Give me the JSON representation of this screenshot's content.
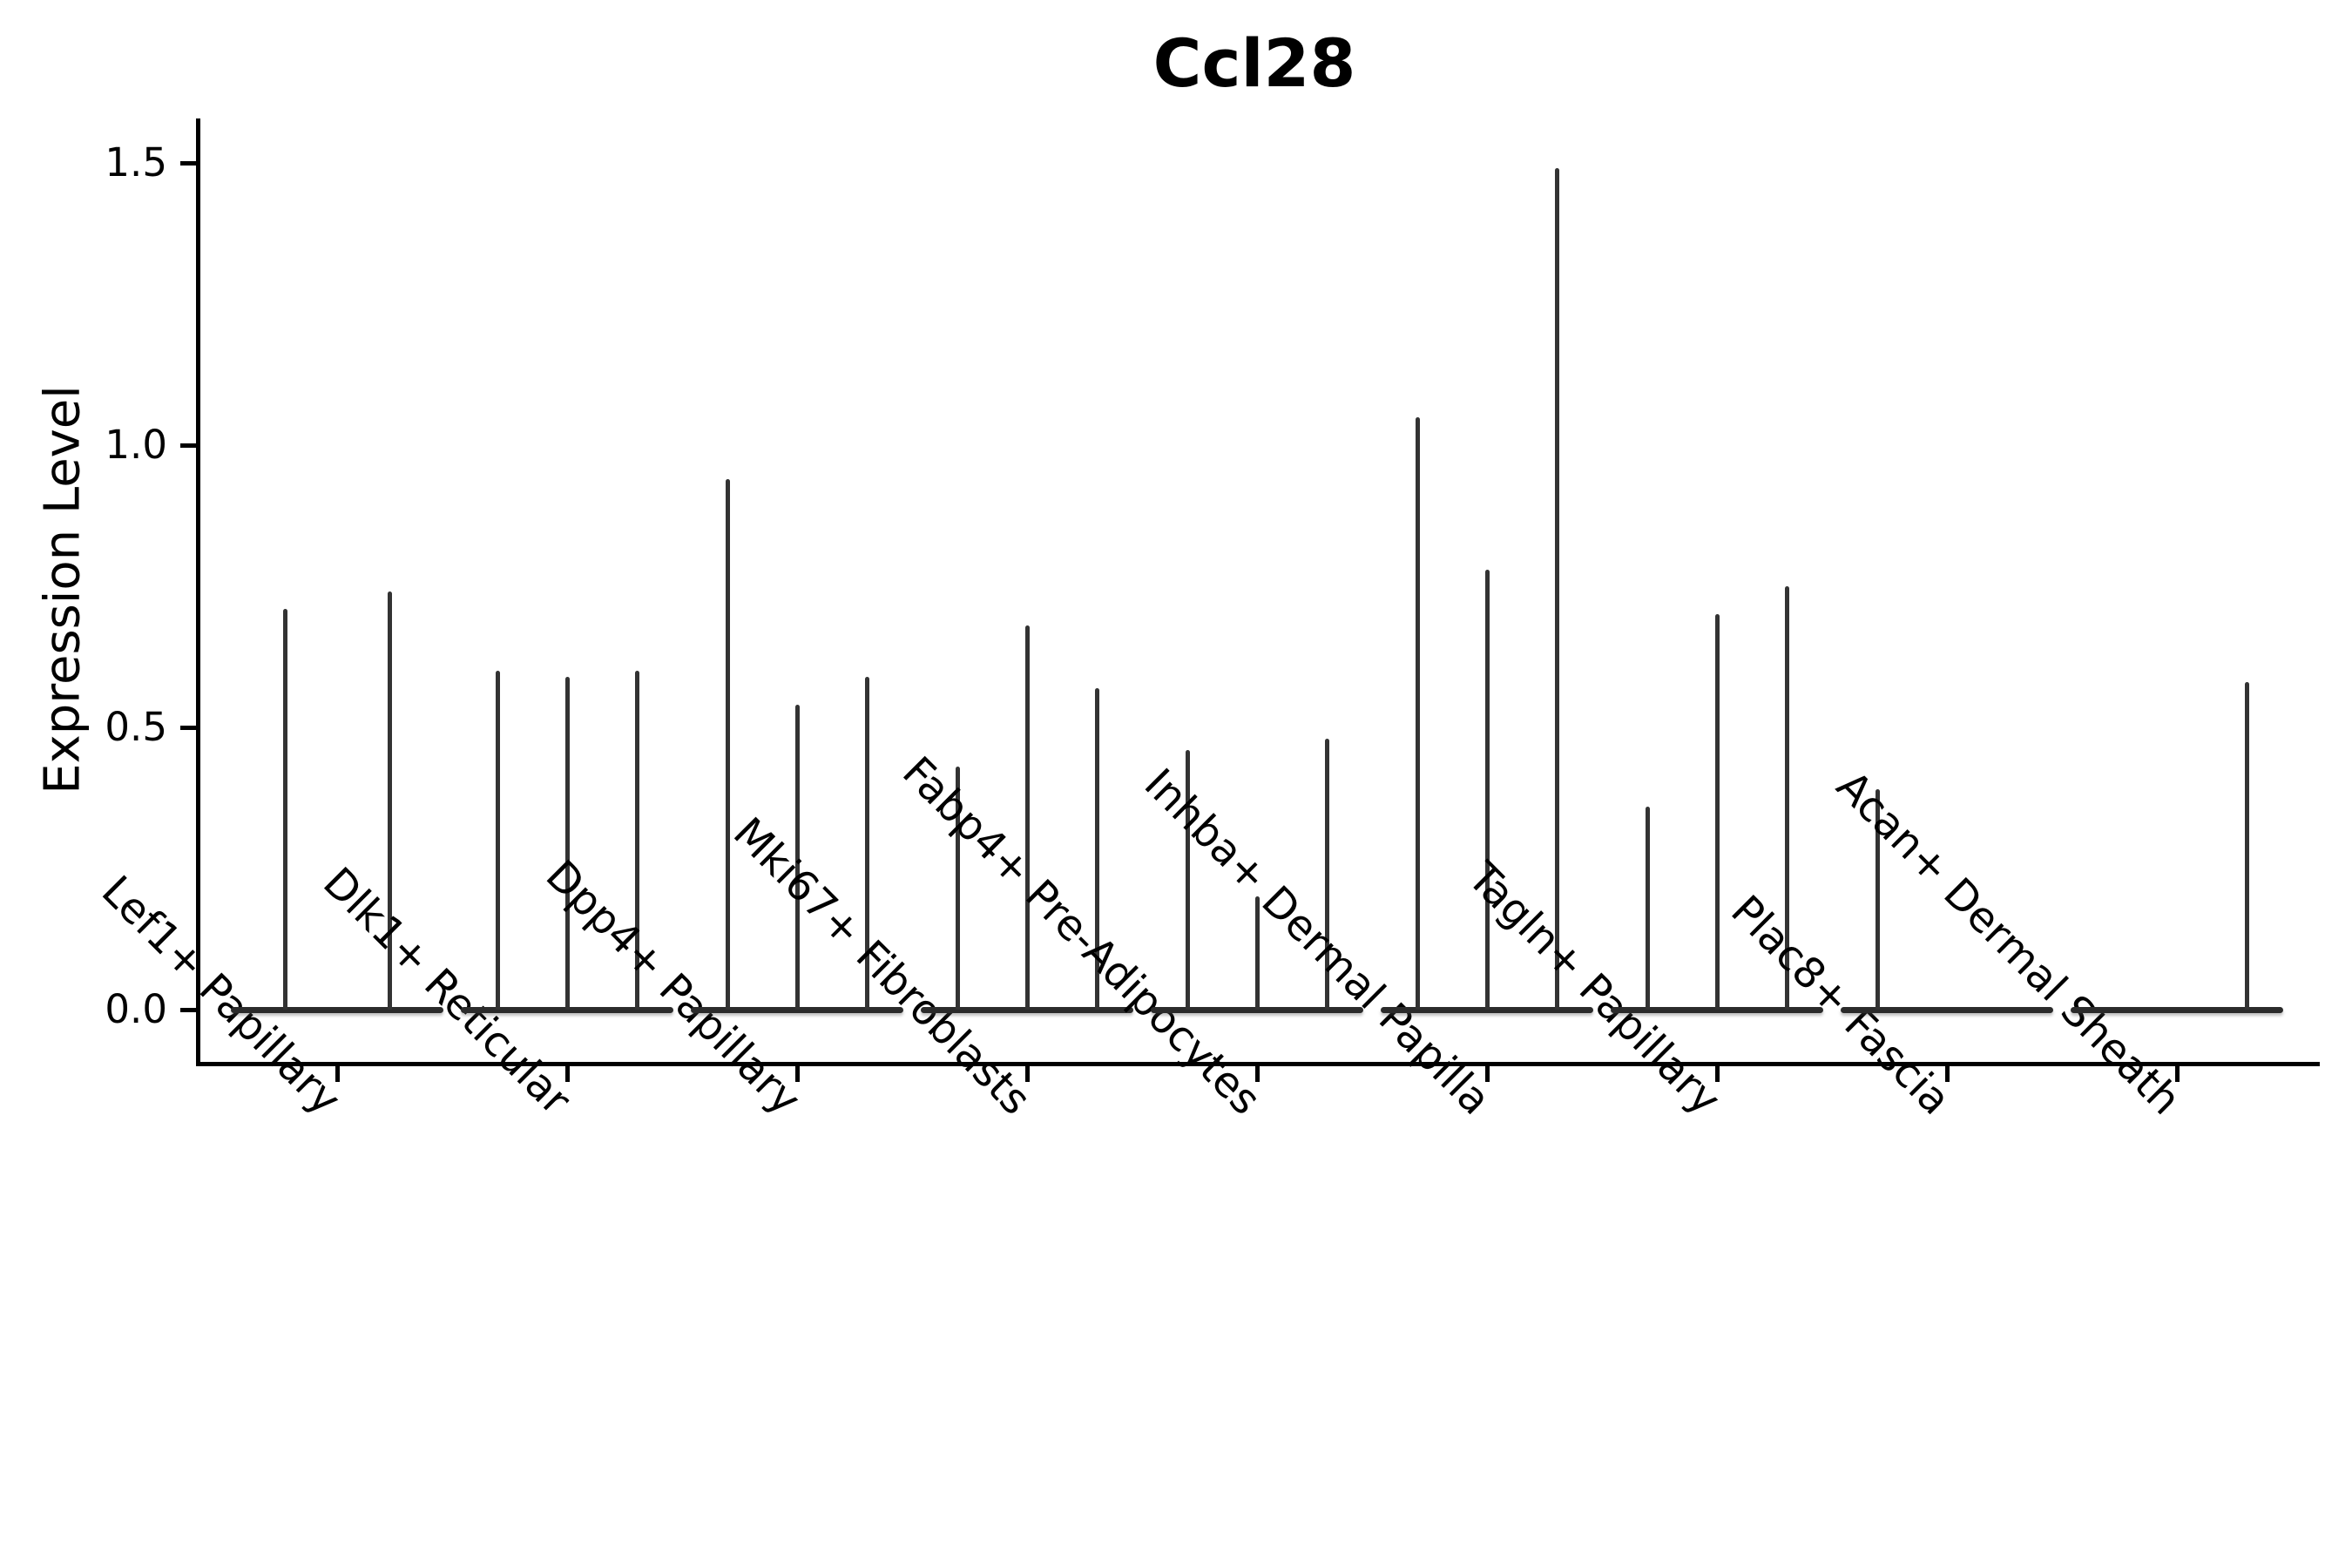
{
  "figure": {
    "title": "Ccl28",
    "ylabel": "Expression Level",
    "background_color": "#ffffff",
    "axis_color": "#000000",
    "violin_color": "#333333"
  },
  "chart_data": {
    "type": "violin",
    "title": "Ccl28",
    "xlabel": "",
    "ylabel": "Expression Level",
    "ylim": [
      -0.09,
      1.58
    ],
    "yticks": [
      "0.0",
      "0.5",
      "1.0",
      "1.5"
    ],
    "ytick_values": [
      0.0,
      0.5,
      1.0,
      1.5
    ],
    "grid": false,
    "legend": "none",
    "xtick_rotation": 45,
    "description": "Violin plot of Ccl28 expression; most cells are at 0 so each violin collapses to a flat base line at 0 with a thin vertical spike up to its maximum expression value.",
    "categories": [
      {
        "label": "Lef1+ Papillary",
        "violin_max_expression": [
          0.71,
          0.74
        ]
      },
      {
        "label": "Dlk1+ Reticular",
        "violin_max_expression": [
          0.6,
          0.59,
          0.6
        ]
      },
      {
        "label": "Dpp4+ Papillary",
        "violin_max_expression": [
          0.94,
          0.54,
          0.59
        ]
      },
      {
        "label": "Mki67+ Fibroblasts",
        "violin_max_expression": [
          0.43,
          0.68,
          0.57
        ]
      },
      {
        "label": "Fabp4+ Pre-Adipocytes",
        "violin_max_expression": [
          0.46,
          0.2,
          0.48
        ]
      },
      {
        "label": "Inhba+ Dermal Papilla",
        "violin_max_expression": [
          1.05,
          0.78,
          1.49
        ]
      },
      {
        "label": "Tagln+ Papillary",
        "violin_max_expression": [
          0.36,
          0.7,
          0.75
        ]
      },
      {
        "label": "Plac8+ Fascia",
        "violin_max_expression": [
          0.39,
          0.0,
          0.0
        ]
      },
      {
        "label": "Acan+ Dermal Sheath",
        "violin_max_expression": [
          0.0,
          0.0,
          0.58
        ]
      }
    ]
  }
}
